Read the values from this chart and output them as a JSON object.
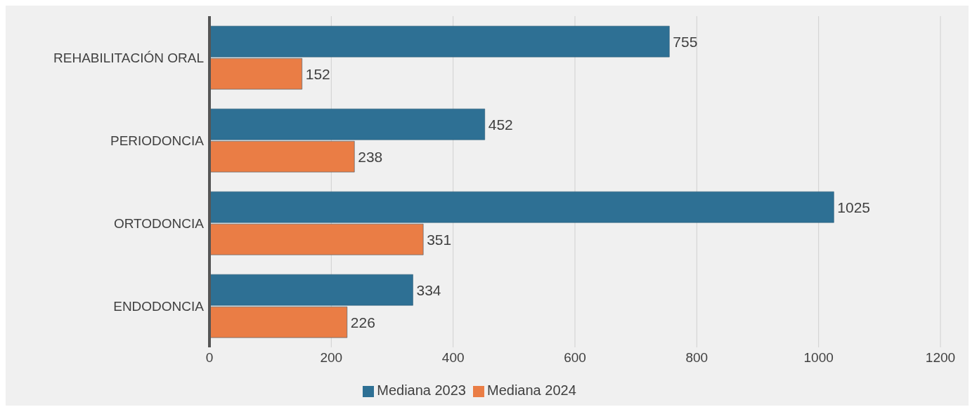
{
  "chart_data": {
    "type": "bar",
    "orientation": "horizontal",
    "categories": [
      "REHABILITACIÓN ORAL",
      "PERIODONCIA",
      "ORTODONCIA",
      "ENDODONCIA"
    ],
    "series": [
      {
        "name": "Mediana 2023",
        "color": "#2e7094",
        "values": [
          755,
          452,
          1025,
          334
        ]
      },
      {
        "name": "Mediana 2024",
        "color": "#ea7d45",
        "values": [
          152,
          238,
          351,
          226
        ]
      }
    ],
    "xlim": [
      0,
      1200
    ],
    "xticks": [
      0,
      200,
      400,
      600,
      800,
      1000,
      1200
    ],
    "grid": "x",
    "legend": "bottom",
    "data_labels": true
  }
}
